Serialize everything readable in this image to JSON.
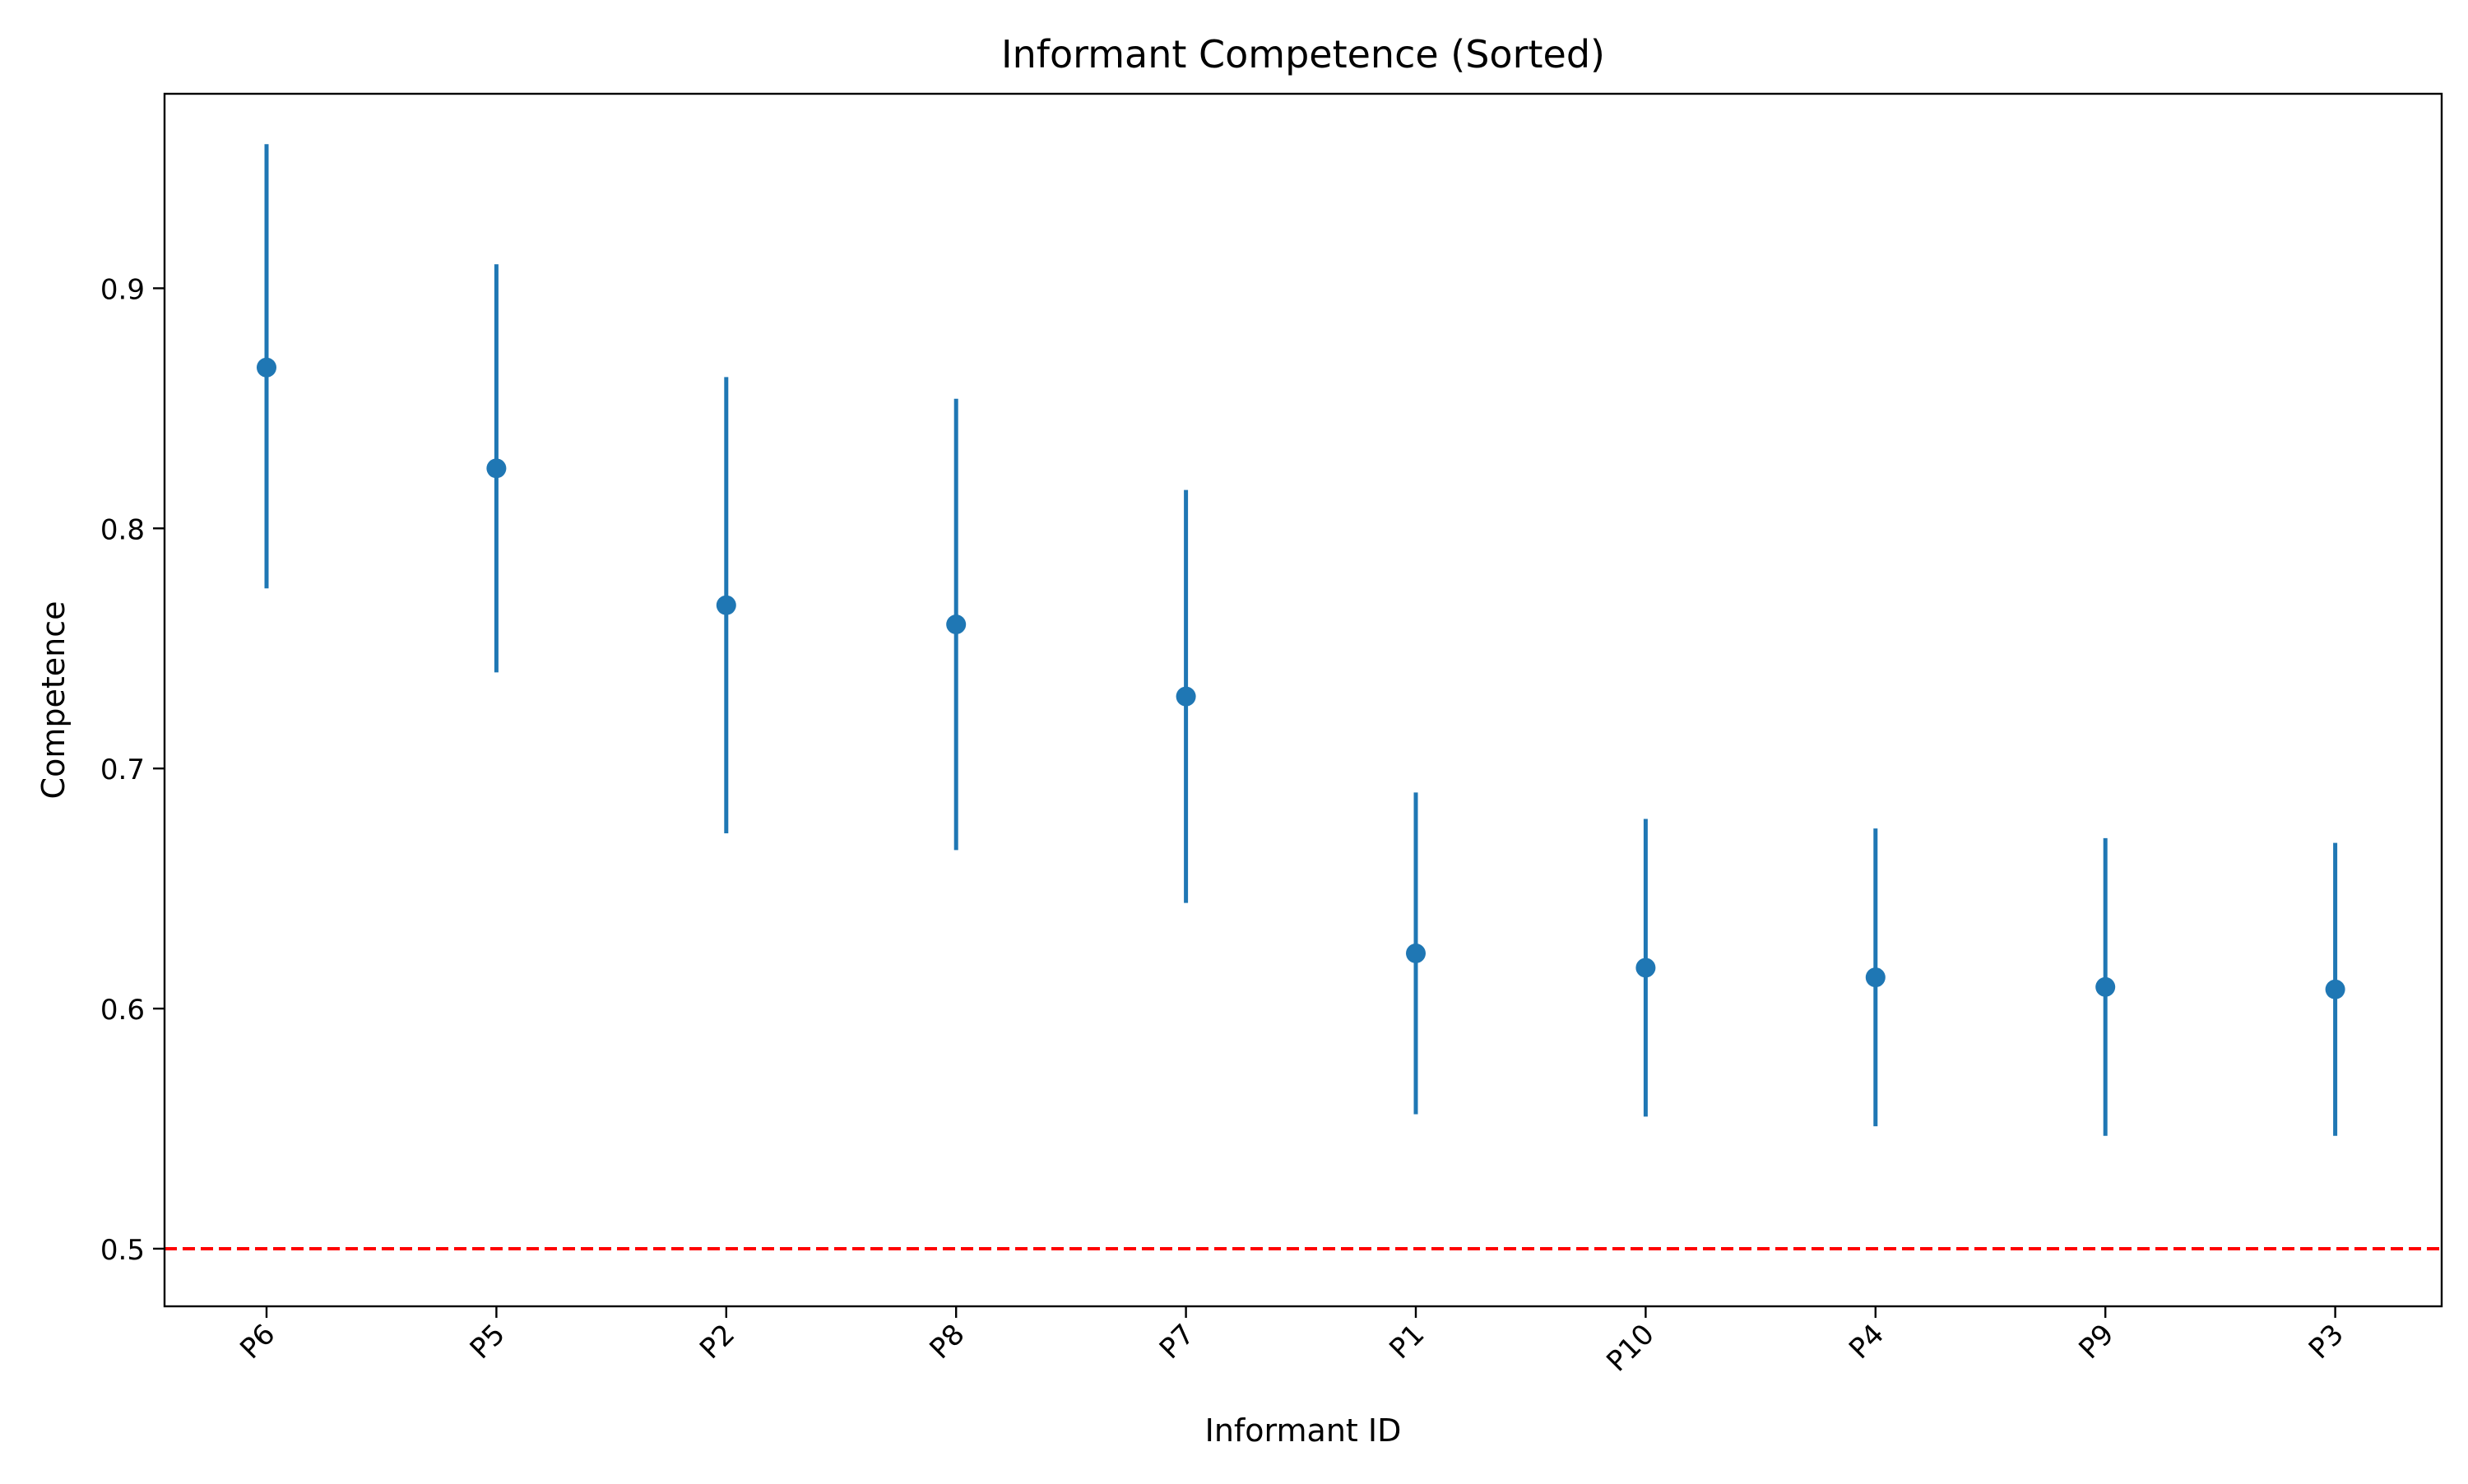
{
  "chart_data": {
    "type": "scatter",
    "title": "Informant Competence (Sorted)",
    "xlabel": "Informant ID",
    "ylabel": "Competence",
    "categories": [
      "P6",
      "P5",
      "P2",
      "P8",
      "P7",
      "P1",
      "P10",
      "P4",
      "P9",
      "P3"
    ],
    "series": [
      {
        "values": [
          0.867,
          0.825,
          0.768,
          0.76,
          0.73,
          0.623,
          0.617,
          0.613,
          0.609,
          0.608
        ],
        "lower": [
          0.775,
          0.74,
          0.673,
          0.666,
          0.644,
          0.556,
          0.555,
          0.551,
          0.547,
          0.547
        ],
        "upper": [
          0.96,
          0.91,
          0.863,
          0.854,
          0.816,
          0.69,
          0.679,
          0.675,
          0.671,
          0.669
        ],
        "color": "#1f77b4"
      }
    ],
    "reference_line": {
      "y": 0.5,
      "color": "#ff0000",
      "style": "dashed"
    },
    "ylim": [
      0.476,
      0.981
    ],
    "yticks": [
      "0.5",
      "0.6",
      "0.7",
      "0.8",
      "0.9"
    ],
    "grid": false,
    "legend": "none"
  }
}
